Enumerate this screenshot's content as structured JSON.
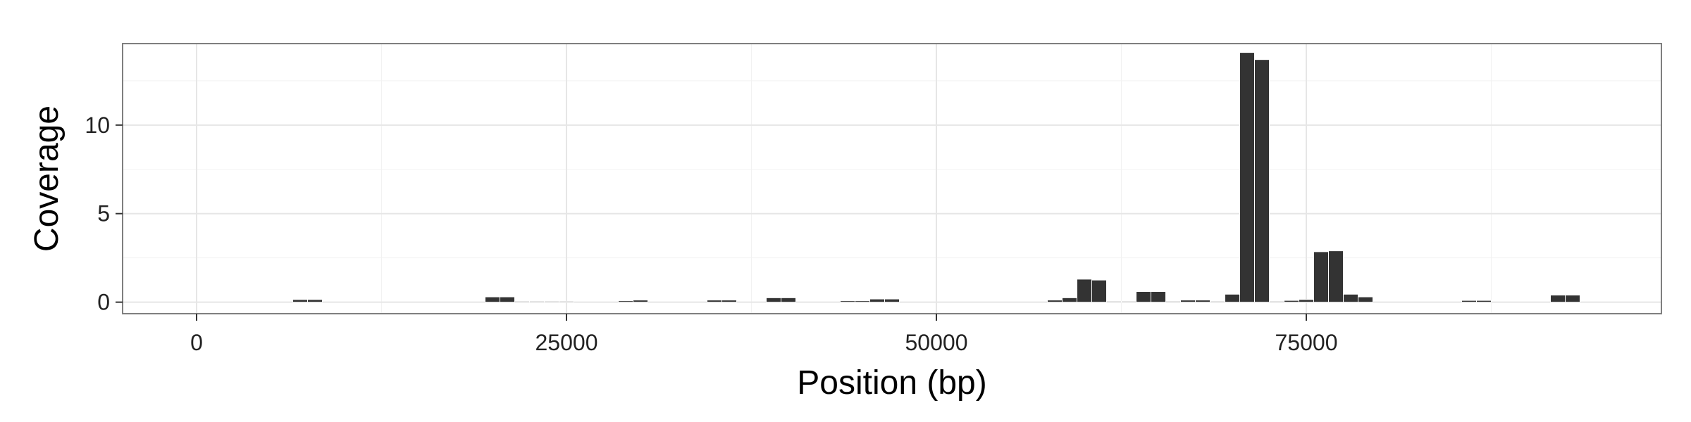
{
  "chart_data": {
    "type": "bar",
    "title": "",
    "xlabel": "Position (bp)",
    "ylabel": "Coverage",
    "xlim": [
      -5000,
      99000
    ],
    "ylim": [
      -0.65,
      14.6
    ],
    "x_ticks": [
      0,
      25000,
      50000,
      75000
    ],
    "y_ticks": [
      0,
      5,
      10
    ],
    "bin_width": 1000,
    "grid": true,
    "legend": "none",
    "colors": {
      "bar": "#333333",
      "bar_outline": "#ffffff",
      "panel_background": "#ffffff",
      "panel_border": "#7f7f7f",
      "grid_major": "#e6e6e6",
      "grid_minor": "#f2f2f2"
    },
    "x": [
      7000,
      8000,
      20000,
      21000,
      22000,
      23000,
      24000,
      25000,
      29000,
      30000,
      35000,
      36000,
      39000,
      40000,
      44000,
      45000,
      46000,
      47000,
      58000,
      59000,
      60000,
      61000,
      62000,
      63000,
      64000,
      65000,
      66000,
      67000,
      68000,
      69000,
      70000,
      71000,
      72000,
      73000,
      74000,
      75000,
      76000,
      77000,
      78000,
      79000,
      86000,
      87000,
      92000,
      93000
    ],
    "values": [
      0.15,
      0.15,
      0.3,
      0.3,
      0.05,
      0.05,
      0.05,
      0.05,
      0.08,
      0.12,
      0.12,
      0.12,
      0.25,
      0.25,
      0.08,
      0.08,
      0.18,
      0.18,
      0.12,
      0.25,
      1.3,
      1.25,
      0.05,
      0.05,
      0.6,
      0.6,
      0.05,
      0.12,
      0.12,
      0.05,
      0.45,
      14.1,
      13.7,
      0.05,
      0.1,
      0.15,
      2.85,
      2.9,
      0.45,
      0.3,
      0.1,
      0.1,
      0.4,
      0.4
    ]
  }
}
